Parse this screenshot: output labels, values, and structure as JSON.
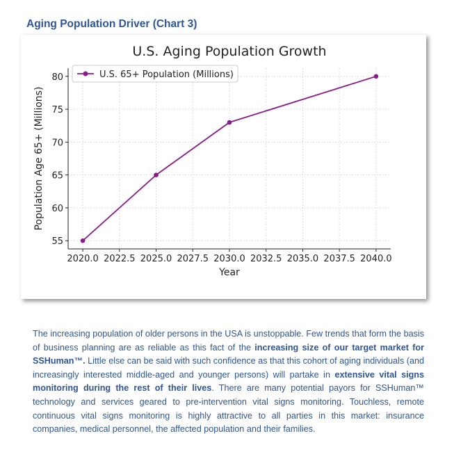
{
  "section_title": "Aging Population Driver (Chart 3)",
  "chart_data": {
    "type": "line",
    "title": "U.S. Aging Population Growth",
    "xlabel": "Year",
    "ylabel": "Population Age 65+ (Millions)",
    "x": [
      2020,
      2025,
      2030,
      2040
    ],
    "series": [
      {
        "name": "U.S. 65+ Population (Millions)",
        "values": [
          55,
          65,
          73,
          80
        ],
        "color": "#8b1a8b"
      }
    ],
    "xlim": [
      2020,
      2040
    ],
    "ylim": [
      55,
      80
    ],
    "xticks": [
      "2020.0",
      "2022.5",
      "2025.0",
      "2027.5",
      "2030.0",
      "2032.5",
      "2035.0",
      "2037.5",
      "2040.0"
    ],
    "yticks": [
      "55",
      "60",
      "65",
      "70",
      "75",
      "80"
    ],
    "grid": true,
    "legend": "top-left"
  },
  "body": {
    "t1": "The increasing population of older persons in the USA is unstoppable.  Few trends that form the basis of business planning are as reliable as this fact of the ",
    "b1": "increasing size of our target market for SSHuman™.",
    "t2": "  Little else can be said with such confidence as that this cohort of aging individuals (and increasingly interested middle-aged and younger persons)  will partake in ",
    "b2": "extensive vital signs monitoring during the rest of their lives",
    "t3": ".  There are many potential payors for SSHuman™ technology and services geared to pre-intervention vital signs monitoring.  Touchless, remote continuous vital signs monitoring is highly attractive to all parties in this market:  insurance companies, medical personnel, the affected population and their families."
  }
}
